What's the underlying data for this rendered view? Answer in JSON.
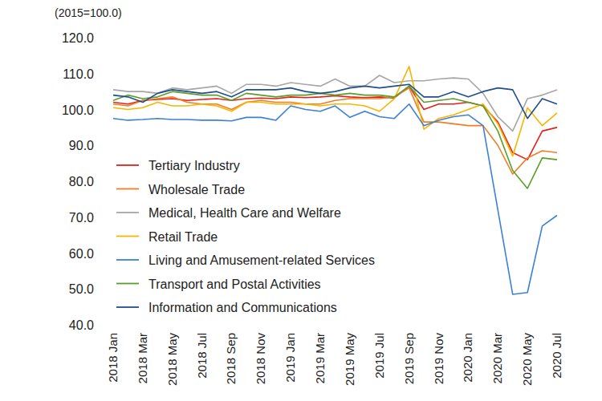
{
  "chart_data": {
    "type": "line",
    "y_label": "(2015=100.0)",
    "categories": [
      "2018 Jan",
      null,
      "2018 Mar",
      null,
      "2018 May",
      null,
      "2018 Jul",
      null,
      "2018 Sep",
      null,
      "2018 Nov",
      null,
      "2019 Jan",
      null,
      "2019 Mar",
      null,
      "2019 May",
      null,
      "2019 Jul",
      null,
      "2019 Sep",
      null,
      "2019 Nov",
      null,
      "2020 Jan",
      null,
      "2020 Mar",
      null,
      "2020 May",
      null,
      "2020 Jul"
    ],
    "series": [
      {
        "name": "Tertiary Industry",
        "color": "#e3211c",
        "values": [
          102,
          101.5,
          102.5,
          102.8,
          103,
          102.5,
          102.8,
          103,
          102.5,
          103,
          103.2,
          103,
          103.5,
          103.3,
          103.5,
          103.8,
          103.5,
          103.3,
          103.5,
          103.2,
          106.5,
          100,
          101.5,
          101.5,
          102,
          101,
          96.5,
          88,
          86,
          94,
          95
        ]
      },
      {
        "name": "Wholesale Trade",
        "color": "#f07d22",
        "values": [
          101.5,
          101,
          102.5,
          103,
          103.5,
          102,
          101.5,
          101.5,
          100,
          102,
          102.5,
          102,
          102,
          101.5,
          101.5,
          102.5,
          103,
          103,
          103,
          103.5,
          106,
          96.5,
          96.5,
          96,
          95.5,
          95.5,
          90,
          82,
          86.5,
          88.5,
          88
        ]
      },
      {
        "name": "Medical, Health Care and Welfare",
        "color": "#a6a6a6",
        "values": [
          105.5,
          105,
          105,
          104.5,
          106,
          105.5,
          106,
          106.5,
          104.5,
          107,
          107,
          106.5,
          107.5,
          107,
          106.5,
          108.5,
          106.5,
          106.5,
          109.5,
          107.5,
          108,
          108,
          108.5,
          108.8,
          108.5,
          104.5,
          98,
          94,
          103,
          104,
          105.5
        ]
      },
      {
        "name": "Retail Trade",
        "color": "#f7b500",
        "values": [
          100.5,
          100,
          100.5,
          102,
          101,
          101,
          101.5,
          101,
          99.5,
          102,
          102,
          101.5,
          101.5,
          101.5,
          101,
          101.5,
          101.5,
          101,
          99.5,
          103,
          112,
          94.5,
          97.5,
          98.5,
          100,
          101.5,
          96,
          87,
          100.5,
          95.5,
          99
        ]
      },
      {
        "name": "Living and Amusement-related Services",
        "color": "#3d7fd9",
        "values": [
          97.5,
          97,
          97.2,
          97.5,
          97.2,
          97.2,
          97,
          97,
          96.8,
          97.8,
          97.8,
          97,
          101,
          100,
          99.5,
          101,
          97.8,
          99.5,
          98,
          97.5,
          101.5,
          95.5,
          97,
          98,
          98.5,
          95.5,
          72,
          48.5,
          49,
          67.5,
          70.5
        ]
      },
      {
        "name": "Transport and Postal Activities",
        "color": "#5a9e2c",
        "values": [
          102.5,
          104,
          103,
          103.5,
          105,
          104.5,
          104,
          104,
          102.5,
          104.5,
          104,
          103.5,
          104,
          104,
          104.5,
          104,
          104.5,
          104,
          104,
          103.5,
          106.5,
          102,
          102.5,
          103,
          102,
          101,
          94,
          83,
          78,
          86.5,
          86
        ]
      },
      {
        "name": "Information and Communications",
        "color": "#1f4f8c",
        "values": [
          104,
          103.5,
          102,
          104.5,
          105.5,
          105,
          104.5,
          105,
          103.5,
          105.5,
          105.5,
          105.5,
          106,
          105,
          104.5,
          105,
          106,
          106.5,
          106,
          106.5,
          107,
          103.5,
          103.5,
          105,
          103.5,
          105,
          106,
          105.5,
          97.5,
          103,
          101.5
        ]
      }
    ],
    "ylim": [
      40,
      120
    ],
    "yticks": [
      {
        "value": 40,
        "label": "40.0"
      },
      {
        "value": 50,
        "label": "50.0"
      },
      {
        "value": 60,
        "label": "60.0"
      },
      {
        "value": 70,
        "label": "70.0"
      },
      {
        "value": 80,
        "label": "80.0"
      },
      {
        "value": 90,
        "label": "90.0"
      },
      {
        "value": 100,
        "label": "100.0"
      },
      {
        "value": 110,
        "label": "110.0"
      },
      {
        "value": 120,
        "label": "120.0"
      }
    ],
    "grid": false,
    "legend": "lower left"
  }
}
